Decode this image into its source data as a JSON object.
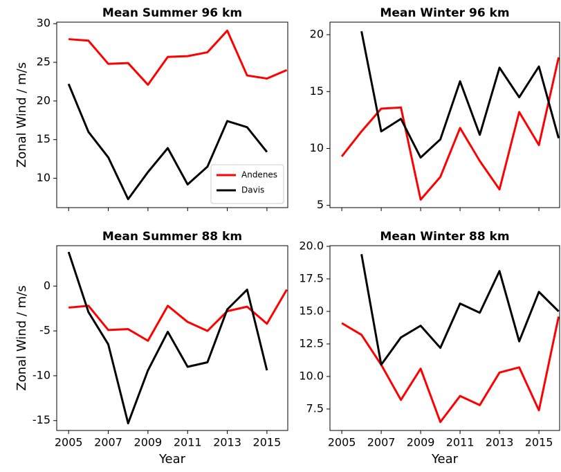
{
  "chart_data": [
    {
      "type": "line",
      "title": "Mean Summer 96 km",
      "ylabel": "Zonal Wind / m/s",
      "x": [
        2005,
        2006,
        2007,
        2008,
        2009,
        2010,
        2011,
        2012,
        2013,
        2014,
        2015,
        2016
      ],
      "series": [
        {
          "name": "Andenes",
          "color": "#ff0000",
          "values": [
            28.0,
            27.8,
            24.8,
            24.9,
            22.1,
            25.7,
            25.8,
            26.3,
            29.1,
            23.3,
            22.9,
            24.0
          ]
        },
        {
          "name": "Davis",
          "color": "#000000",
          "values": [
            22.2,
            16.0,
            12.7,
            7.3,
            10.8,
            13.9,
            9.2,
            11.5,
            17.4,
            16.6,
            13.4,
            null
          ]
        }
      ],
      "xlim": [
        2004.4,
        2016.05
      ],
      "xticks": [
        2005,
        2007,
        2009,
        2011,
        2013,
        2015
      ],
      "ylim": [
        6.2,
        30.2
      ],
      "yticks": [
        10,
        15,
        20,
        25,
        30
      ],
      "legend": "lower right"
    },
    {
      "type": "line",
      "title": "Mean Winter 96 km",
      "x": [
        2005,
        2006,
        2007,
        2008,
        2009,
        2010,
        2011,
        2012,
        2013,
        2014,
        2015,
        2016
      ],
      "series": [
        {
          "color": "#ff0000",
          "values": [
            9.3,
            11.5,
            13.5,
            13.6,
            5.5,
            7.5,
            11.8,
            8.9,
            6.4,
            13.2,
            10.3,
            18.0
          ]
        },
        {
          "color": "#000000",
          "values": [
            null,
            20.3,
            11.5,
            12.6,
            9.2,
            10.8,
            15.9,
            11.2,
            17.1,
            14.5,
            17.2,
            10.9
          ]
        }
      ],
      "xlim": [
        2004.4,
        2016.05
      ],
      "xticks": [
        2005,
        2007,
        2009,
        2011,
        2013,
        2015
      ],
      "ylim": [
        4.8,
        21.1
      ],
      "yticks": [
        5,
        10,
        15,
        20
      ]
    },
    {
      "type": "line",
      "title": "Mean Summer 88 km",
      "ylabel": "Zonal Wind / m/s",
      "xlabel": "Year",
      "x": [
        2005,
        2006,
        2007,
        2008,
        2009,
        2010,
        2011,
        2012,
        2013,
        2014,
        2015,
        2016
      ],
      "series": [
        {
          "color": "#ff0000",
          "values": [
            -2.4,
            -2.2,
            -4.9,
            -4.8,
            -6.1,
            -2.2,
            -4.0,
            -5.0,
            -2.8,
            -2.3,
            -4.2,
            -0.4
          ]
        },
        {
          "color": "#000000",
          "values": [
            3.8,
            -2.9,
            -6.5,
            -15.3,
            -9.4,
            -5.1,
            -9.0,
            -8.5,
            -2.6,
            -0.4,
            -9.4,
            null
          ]
        }
      ],
      "xlim": [
        2004.4,
        2016.05
      ],
      "xticks": [
        2005,
        2007,
        2009,
        2011,
        2013,
        2015
      ],
      "ylim": [
        -16.1,
        4.5
      ],
      "yticks": [
        -15,
        -10,
        -5,
        0
      ]
    },
    {
      "type": "line",
      "title": "Mean Winter 88 km",
      "xlabel": "Year",
      "x": [
        2005,
        2006,
        2007,
        2008,
        2009,
        2010,
        2011,
        2012,
        2013,
        2014,
        2015,
        2016
      ],
      "series": [
        {
          "color": "#ff0000",
          "values": [
            14.1,
            13.2,
            10.9,
            8.2,
            10.6,
            6.5,
            8.5,
            7.8,
            10.3,
            10.7,
            7.4,
            14.6
          ]
        },
        {
          "color": "#000000",
          "values": [
            null,
            19.4,
            10.9,
            13.0,
            13.9,
            12.2,
            15.6,
            14.9,
            18.1,
            12.7,
            16.5,
            15.0
          ]
        }
      ],
      "xlim": [
        2004.4,
        2016.05
      ],
      "xticks": [
        2005,
        2007,
        2009,
        2011,
        2013,
        2015
      ],
      "ylim": [
        5.85,
        20.05
      ],
      "yticks": [
        {
          "value": 7.5,
          "label": "7.5"
        },
        {
          "value": 10,
          "label": "10.0"
        },
        {
          "value": 12.5,
          "label": "12.5"
        },
        {
          "value": 15,
          "label": "15.0"
        },
        {
          "value": 17.5,
          "label": "17.5"
        },
        {
          "value": 20,
          "label": "20.0"
        }
      ]
    }
  ]
}
